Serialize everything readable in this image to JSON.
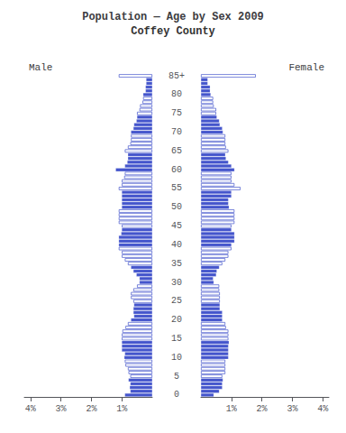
{
  "chart_data": {
    "type": "bar",
    "orientation": "horizontal",
    "title": "Population — Age by Sex 2009",
    "subtitle": "Coffey County",
    "categories": [
      "0",
      null,
      null,
      null,
      null,
      "5",
      null,
      null,
      null,
      null,
      "10",
      null,
      null,
      null,
      null,
      "15",
      null,
      null,
      null,
      null,
      "20",
      null,
      null,
      null,
      null,
      "25",
      null,
      null,
      null,
      null,
      "30",
      null,
      null,
      null,
      null,
      "35",
      null,
      null,
      null,
      null,
      "40",
      null,
      null,
      null,
      null,
      "45",
      null,
      null,
      null,
      null,
      "50",
      null,
      null,
      null,
      null,
      "55",
      null,
      null,
      null,
      null,
      "60",
      null,
      null,
      null,
      null,
      "65",
      null,
      null,
      null,
      null,
      "70",
      null,
      null,
      null,
      null,
      "75",
      null,
      null,
      null,
      null,
      "80",
      null,
      null,
      null,
      null,
      "85+"
    ],
    "series": [
      {
        "name": "Male",
        "color": "#4455cc",
        "values": [
          0.9,
          0.72,
          0.74,
          0.72,
          0.78,
          0.72,
          0.78,
          0.8,
          0.88,
          0.9,
          0.92,
          0.9,
          1.0,
          1.0,
          1.0,
          1.0,
          1.0,
          0.98,
          0.88,
          0.8,
          0.7,
          0.6,
          0.62,
          0.62,
          0.6,
          0.62,
          0.7,
          0.7,
          0.62,
          0.5,
          0.42,
          0.42,
          0.52,
          0.62,
          0.7,
          0.8,
          0.9,
          1.0,
          1.0,
          1.1,
          1.1,
          1.1,
          1.1,
          1.02,
          1.0,
          1.0,
          1.1,
          1.1,
          1.1,
          1.1,
          1.0,
          1.0,
          1.0,
          1.0,
          1.0,
          1.1,
          1.0,
          1.0,
          0.92,
          0.9,
          1.2,
          0.9,
          0.82,
          0.8,
          0.8,
          0.9,
          0.8,
          0.72,
          0.7,
          0.7,
          0.7,
          0.62,
          0.6,
          0.52,
          0.5,
          0.5,
          0.42,
          0.4,
          0.32,
          0.3,
          0.3,
          0.22,
          0.22,
          0.2,
          0.2,
          1.1
        ]
      },
      {
        "name": "Female",
        "color": "#4455cc",
        "values": [
          0.42,
          0.6,
          0.7,
          0.7,
          0.72,
          0.7,
          0.8,
          0.8,
          0.8,
          0.8,
          0.9,
          0.9,
          0.9,
          0.9,
          0.92,
          0.9,
          0.9,
          0.9,
          0.82,
          0.8,
          0.7,
          0.7,
          0.7,
          0.62,
          0.62,
          0.62,
          0.62,
          0.62,
          0.6,
          0.6,
          0.42,
          0.4,
          0.5,
          0.52,
          0.6,
          0.7,
          0.8,
          0.9,
          0.9,
          1.0,
          1.0,
          1.1,
          1.1,
          1.1,
          1.0,
          1.0,
          1.1,
          1.1,
          1.1,
          1.1,
          0.92,
          0.9,
          0.9,
          1.0,
          1.0,
          1.3,
          1.1,
          1.0,
          1.0,
          1.0,
          1.1,
          1.0,
          0.9,
          0.82,
          0.8,
          0.9,
          0.82,
          0.8,
          0.8,
          0.8,
          0.72,
          0.7,
          0.62,
          0.6,
          0.52,
          0.5,
          0.5,
          0.42,
          0.4,
          0.4,
          0.32,
          0.3,
          0.3,
          0.22,
          0.22,
          1.8
        ]
      }
    ],
    "xlim": [
      0,
      4.2
    ],
    "xticks": [
      {
        "value": 1,
        "label": "1%"
      },
      {
        "value": 2,
        "label": "2%"
      },
      {
        "value": 3,
        "label": "3%"
      },
      {
        "value": 4,
        "label": "4%"
      }
    ],
    "grid": false
  }
}
